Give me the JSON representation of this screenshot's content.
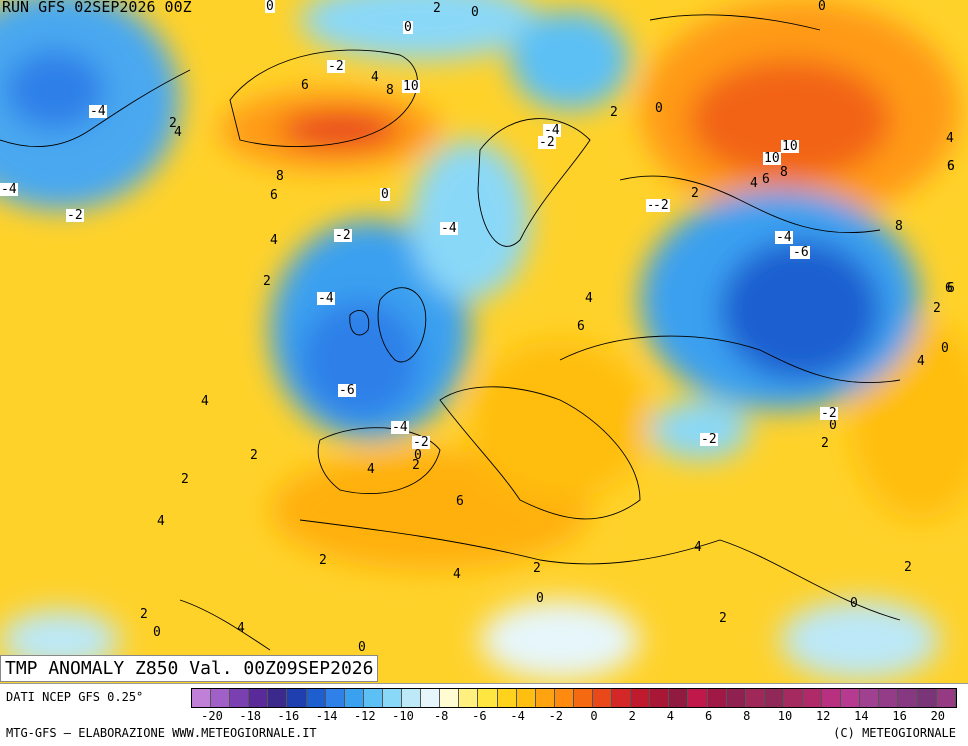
{
  "header": {
    "run": "RUN GFS 02SEP2026 00Z"
  },
  "map": {
    "title": "TMP ANOMALY Z850 Val. 00Z09SEP2026",
    "contour_labels": [
      "0",
      "2",
      "0",
      "0",
      "-2",
      "6",
      "4",
      "8",
      "10",
      "-4",
      "2",
      "4",
      "2",
      "0",
      "-4",
      "-2",
      "-2",
      "8",
      "6",
      "0",
      "-4",
      "4",
      "-2",
      "2",
      "-2",
      "-4",
      "-4",
      "-6",
      "4",
      "6",
      "4",
      "6",
      "-6",
      "-4",
      "-2",
      "0",
      "2",
      "2",
      "4",
      "6",
      "2",
      "4",
      "2",
      "-2",
      "0",
      "2",
      "-2",
      "4",
      "0",
      "2",
      "4",
      "2",
      "0",
      "2",
      "0",
      "0",
      "4",
      "2",
      "2",
      "0",
      "4",
      "6",
      "-2",
      "10",
      "10",
      "8",
      "4",
      "6",
      "4",
      "6",
      "2",
      "0",
      "8",
      "6",
      "-6",
      "-4"
    ]
  },
  "legend": {
    "source": "DATI NCEP GFS 0.25°",
    "ticks": [
      "-20",
      "-18",
      "-16",
      "-14",
      "-12",
      "-10",
      "-8",
      "-6",
      "-4",
      "-2",
      "0",
      "2",
      "4",
      "6",
      "8",
      "10",
      "12",
      "14",
      "16",
      "20"
    ],
    "colors": [
      "#c080d8",
      "#a060c8",
      "#7a3fb0",
      "#5a2a9a",
      "#3b2a8c",
      "#1f3fb0",
      "#1e5fd0",
      "#2f80e8",
      "#3aa0f0",
      "#5cc0f5",
      "#8ad8f8",
      "#bce8f8",
      "#e6f6fa",
      "#fffbd2",
      "#fff080",
      "#ffe640",
      "#ffd21e",
      "#ffbe10",
      "#ffa410",
      "#ff8a10",
      "#f56a10",
      "#e8481a",
      "#d42828",
      "#c01a2e",
      "#a81836",
      "#901a40",
      "#c0184a",
      "#a01845",
      "#902050",
      "#a02858",
      "#902858",
      "#a42a60",
      "#b02a6a",
      "#b83080",
      "#b63a90",
      "#a04090",
      "#943c88",
      "#863880",
      "#7a3478",
      "#963a84"
    ],
    "credits": "MTG-GFS — ELABORAZIONE WWW.METEOGIORNALE.IT",
    "copyright": "(C) METEOGIORNALE"
  }
}
